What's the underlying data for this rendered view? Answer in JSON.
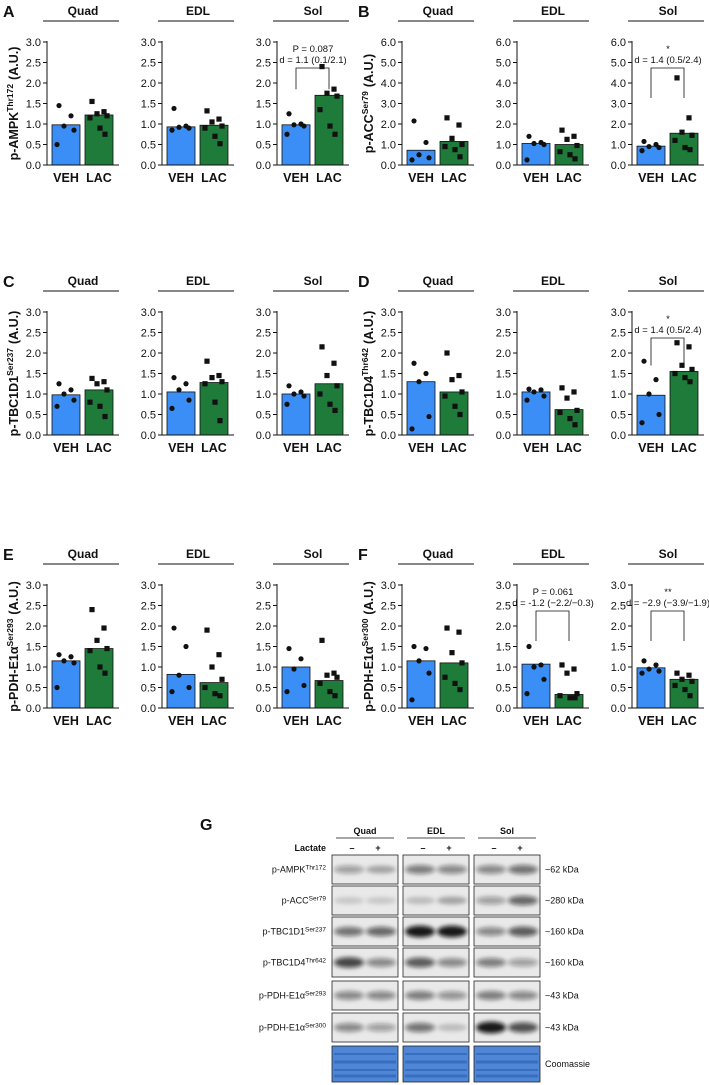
{
  "chart_data": [
    {
      "type": "bar",
      "panel": "A",
      "ylabel": "p-AMPK",
      "ylabel_sup": "Thr172",
      "ylabel_unit": "(A.U.)",
      "categories": [
        "VEH",
        "LAC"
      ],
      "colors": [
        "#3a8ef6",
        "#1e7b3a"
      ],
      "ylim": [
        0,
        3
      ],
      "yticks": [
        {
          "value": 0,
          "label": "0.0"
        },
        0.5,
        {
          "value": 1,
          "label": "1.0"
        },
        1.5,
        {
          "value": 2,
          "label": "2.0"
        },
        2.5,
        {
          "value": 3,
          "label": "3.0"
        }
      ],
      "subplots": [
        {
          "title": "Quad",
          "values": [
            0.98,
            1.22
          ],
          "points": [
            [
              1.45,
              1.2,
              0.95,
              0.85,
              0.5
            ],
            [
              1.55,
              1.3,
              1.25,
              1.2,
              1.15,
              0.9,
              0.75
            ]
          ]
        },
        {
          "title": "EDL",
          "values": [
            0.93,
            0.97
          ],
          "points": [
            [
              1.38,
              0.95,
              0.92,
              0.9,
              0.85
            ],
            [
              1.32,
              1.12,
              1.05,
              0.95,
              0.9,
              0.7,
              0.52
            ]
          ]
        },
        {
          "title": "Sol",
          "values": [
            0.98,
            1.7
          ],
          "points": [
            [
              1.25,
              1.0,
              0.98,
              0.95,
              0.75
            ],
            [
              2.4,
              1.85,
              1.75,
              1.68,
              1.35,
              0.95,
              0.75
            ]
          ],
          "annotations": [
            "P = 0.087",
            "d = 1.1 (0.1/2.1)"
          ]
        }
      ]
    },
    {
      "type": "bar",
      "panel": "B",
      "ylabel": "p-ACC",
      "ylabel_sup": "Ser79",
      "ylabel_unit": "(A.U.)",
      "categories": [
        "VEH",
        "LAC"
      ],
      "colors": [
        "#3a8ef6",
        "#1e7b3a"
      ],
      "ylim": [
        0,
        6
      ],
      "yticks": [
        {
          "value": 0,
          "label": "0.0"
        },
        {
          "value": 1,
          "label": "1.0"
        },
        {
          "value": 2,
          "label": "2.0"
        },
        {
          "value": 3,
          "label": "3.0"
        },
        {
          "value": 4,
          "label": "4.0"
        },
        {
          "value": 5,
          "label": "5.0"
        },
        {
          "value": 6,
          "label": "6.0"
        }
      ],
      "subplots": [
        {
          "title": "Quad",
          "values": [
            0.72,
            1.15
          ],
          "points": [
            [
              2.15,
              1.1,
              0.5,
              0.35,
              0.25
            ],
            [
              2.3,
              1.95,
              1.3,
              1.0,
              0.9,
              0.75,
              0.4
            ]
          ]
        },
        {
          "title": "EDL",
          "values": [
            1.05,
            1.0
          ],
          "points": [
            [
              1.4,
              1.1,
              1.05,
              1.0,
              0.25
            ],
            [
              1.7,
              1.4,
              1.25,
              0.95,
              0.65,
              0.5,
              0.3
            ]
          ]
        },
        {
          "title": "Sol",
          "values": [
            0.92,
            1.55
          ],
          "points": [
            [
              1.15,
              1.0,
              0.9,
              0.85,
              0.7
            ],
            [
              4.25,
              2.3,
              1.6,
              1.45,
              1.2,
              0.85,
              0.75
            ]
          ],
          "annotations": [
            "*",
            "d = 1.4 (0.5/2.4)"
          ]
        }
      ]
    },
    {
      "type": "bar",
      "panel": "C",
      "ylabel": "p-TBC1D1",
      "ylabel_sup": "Ser237",
      "ylabel_unit": "(A.U.)",
      "categories": [
        "VEH",
        "LAC"
      ],
      "colors": [
        "#3a8ef6",
        "#1e7b3a"
      ],
      "ylim": [
        0,
        3
      ],
      "yticks": [
        {
          "value": 0,
          "label": "0.0"
        },
        0.5,
        {
          "value": 1,
          "label": "1.0"
        },
        1.5,
        {
          "value": 2,
          "label": "2.0"
        },
        2.5,
        {
          "value": 3,
          "label": "3.0"
        }
      ],
      "subplots": [
        {
          "title": "Quad",
          "values": [
            0.98,
            1.1
          ],
          "points": [
            [
              1.25,
              1.1,
              1.0,
              0.85,
              0.7
            ],
            [
              1.38,
              1.3,
              1.25,
              1.1,
              0.8,
              0.7,
              0.45
            ]
          ]
        },
        {
          "title": "EDL",
          "values": [
            1.05,
            1.28
          ],
          "points": [
            [
              1.4,
              1.25,
              1.1,
              0.85,
              0.65
            ],
            [
              1.8,
              1.45,
              1.4,
              1.3,
              1.25,
              0.8,
              0.35
            ]
          ]
        },
        {
          "title": "Sol",
          "values": [
            1.0,
            1.25
          ],
          "points": [
            [
              1.2,
              1.05,
              1.0,
              0.95,
              0.75
            ],
            [
              2.15,
              1.75,
              1.45,
              1.2,
              1.0,
              0.75,
              0.6
            ]
          ]
        }
      ]
    },
    {
      "type": "bar",
      "panel": "D",
      "ylabel": "p-TBC1D4",
      "ylabel_sup": "Thr642",
      "ylabel_unit": "(A.U.)",
      "categories": [
        "VEH",
        "LAC"
      ],
      "colors": [
        "#3a8ef6",
        "#1e7b3a"
      ],
      "ylim": [
        0,
        3
      ],
      "yticks": [
        {
          "value": 0,
          "label": "0.0"
        },
        0.5,
        {
          "value": 1,
          "label": "1.0"
        },
        1.5,
        {
          "value": 2,
          "label": "2.0"
        },
        2.5,
        {
          "value": 3,
          "label": "3.0"
        }
      ],
      "subplots": [
        {
          "title": "Quad",
          "values": [
            1.3,
            1.05
          ],
          "points": [
            [
              1.75,
              1.5,
              1.3,
              0.45,
              0.15
            ],
            [
              2.0,
              1.45,
              1.35,
              1.05,
              0.95,
              0.7,
              0.5
            ]
          ]
        },
        {
          "title": "EDL",
          "values": [
            1.05,
            0.62
          ],
          "points": [
            [
              1.12,
              1.1,
              1.05,
              0.95,
              0.85
            ],
            [
              1.15,
              1.05,
              0.9,
              0.6,
              0.55,
              0.4,
              0.25
            ]
          ]
        },
        {
          "title": "Sol",
          "values": [
            0.97,
            1.55
          ],
          "points": [
            [
              1.8,
              1.35,
              1.0,
              0.5,
              0.3
            ],
            [
              2.25,
              2.15,
              1.7,
              1.6,
              1.5,
              1.4,
              1.3
            ]
          ],
          "annotations": [
            "*",
            "d = 1.4 (0.5/2.4)"
          ]
        }
      ]
    },
    {
      "type": "bar",
      "panel": "E",
      "ylabel": "p-PDH-E1α",
      "ylabel_sup": "Ser293",
      "ylabel_unit": "(A.U.)",
      "categories": [
        "VEH",
        "LAC"
      ],
      "colors": [
        "#3a8ef6",
        "#1e7b3a"
      ],
      "ylim": [
        0,
        3
      ],
      "yticks": [
        {
          "value": 0,
          "label": "0.0"
        },
        0.5,
        {
          "value": 1,
          "label": "1.0"
        },
        1.5,
        {
          "value": 2,
          "label": "2.0"
        },
        2.5,
        {
          "value": 3,
          "label": "3.0"
        }
      ],
      "subplots": [
        {
          "title": "Quad",
          "values": [
            1.15,
            1.45
          ],
          "points": [
            [
              1.3,
              1.25,
              1.15,
              1.1,
              0.5
            ],
            [
              2.4,
              1.95,
              1.65,
              1.45,
              1.4,
              1.0,
              0.85
            ]
          ]
        },
        {
          "title": "EDL",
          "values": [
            0.82,
            0.62
          ],
          "points": [
            [
              1.95,
              1.5,
              0.8,
              0.5,
              0.4
            ],
            [
              1.9,
              1.3,
              1.0,
              0.7,
              0.5,
              0.35,
              0.3
            ]
          ]
        },
        {
          "title": "Sol",
          "values": [
            1.0,
            0.67
          ],
          "points": [
            [
              1.45,
              1.2,
              0.95,
              0.55,
              0.4
            ],
            [
              1.65,
              0.85,
              0.8,
              0.75,
              0.6,
              0.4,
              0.3
            ]
          ]
        }
      ]
    },
    {
      "type": "bar",
      "panel": "F",
      "ylabel": "p-PDH-E1α",
      "ylabel_sup": "Ser300",
      "ylabel_unit": "(A.U.)",
      "categories": [
        "VEH",
        "LAC"
      ],
      "colors": [
        "#3a8ef6",
        "#1e7b3a"
      ],
      "ylim": [
        0,
        3
      ],
      "yticks": [
        {
          "value": 0,
          "label": "0.0"
        },
        0.5,
        {
          "value": 1,
          "label": "1.0"
        },
        1.5,
        {
          "value": 2,
          "label": "2.0"
        },
        2.5,
        {
          "value": 3,
          "label": "3.0"
        }
      ],
      "subplots": [
        {
          "title": "Quad",
          "values": [
            1.15,
            1.1
          ],
          "points": [
            [
              1.5,
              1.45,
              1.15,
              0.85,
              0.2
            ],
            [
              1.95,
              1.85,
              1.35,
              1.1,
              0.75,
              0.6,
              0.45
            ]
          ]
        },
        {
          "title": "EDL",
          "values": [
            1.07,
            0.33
          ],
          "points": [
            [
              1.5,
              1.05,
              1.0,
              0.7,
              0.35
            ],
            [
              1.05,
              0.95,
              0.85,
              0.35,
              0.3,
              0.25,
              0.25
            ]
          ],
          "annotations": [
            "P = 0.061",
            "d = -1.2 (−2.2/−0.3)"
          ]
        },
        {
          "title": "Sol",
          "values": [
            0.98,
            0.7
          ],
          "points": [
            [
              1.15,
              1.05,
              0.95,
              0.9,
              0.85
            ],
            [
              0.85,
              0.8,
              0.7,
              0.65,
              0.55,
              0.45,
              0.3
            ]
          ],
          "annotations": [
            "**",
            "d = −2.9 (−3.9/−1.9)"
          ]
        }
      ]
    }
  ],
  "blot": {
    "panel": "G",
    "groups": [
      "Quad",
      "EDL",
      "Sol"
    ],
    "treatment": "Lactate",
    "levels": [
      "–",
      "+"
    ],
    "rows": [
      {
        "name": "p-AMPK",
        "sup": "Thr172",
        "size": "~62 kDa"
      },
      {
        "name": "p-ACC",
        "sup": "Ser79",
        "size": "~280 kDa"
      },
      {
        "name": "p-TBC1D1",
        "sup": "Ser237",
        "size": "~160 kDa"
      },
      {
        "name": "p-TBC1D4",
        "sup": "Thr642",
        "size": "~160 kDa"
      },
      {
        "name": "p-PDH-E1α",
        "sup": "Ser293",
        "size": "~43 kDa"
      },
      {
        "name": "p-PDH-E1α",
        "sup": "Ser300",
        "size": "~43 kDa"
      }
    ],
    "stain": "Coomassie"
  }
}
